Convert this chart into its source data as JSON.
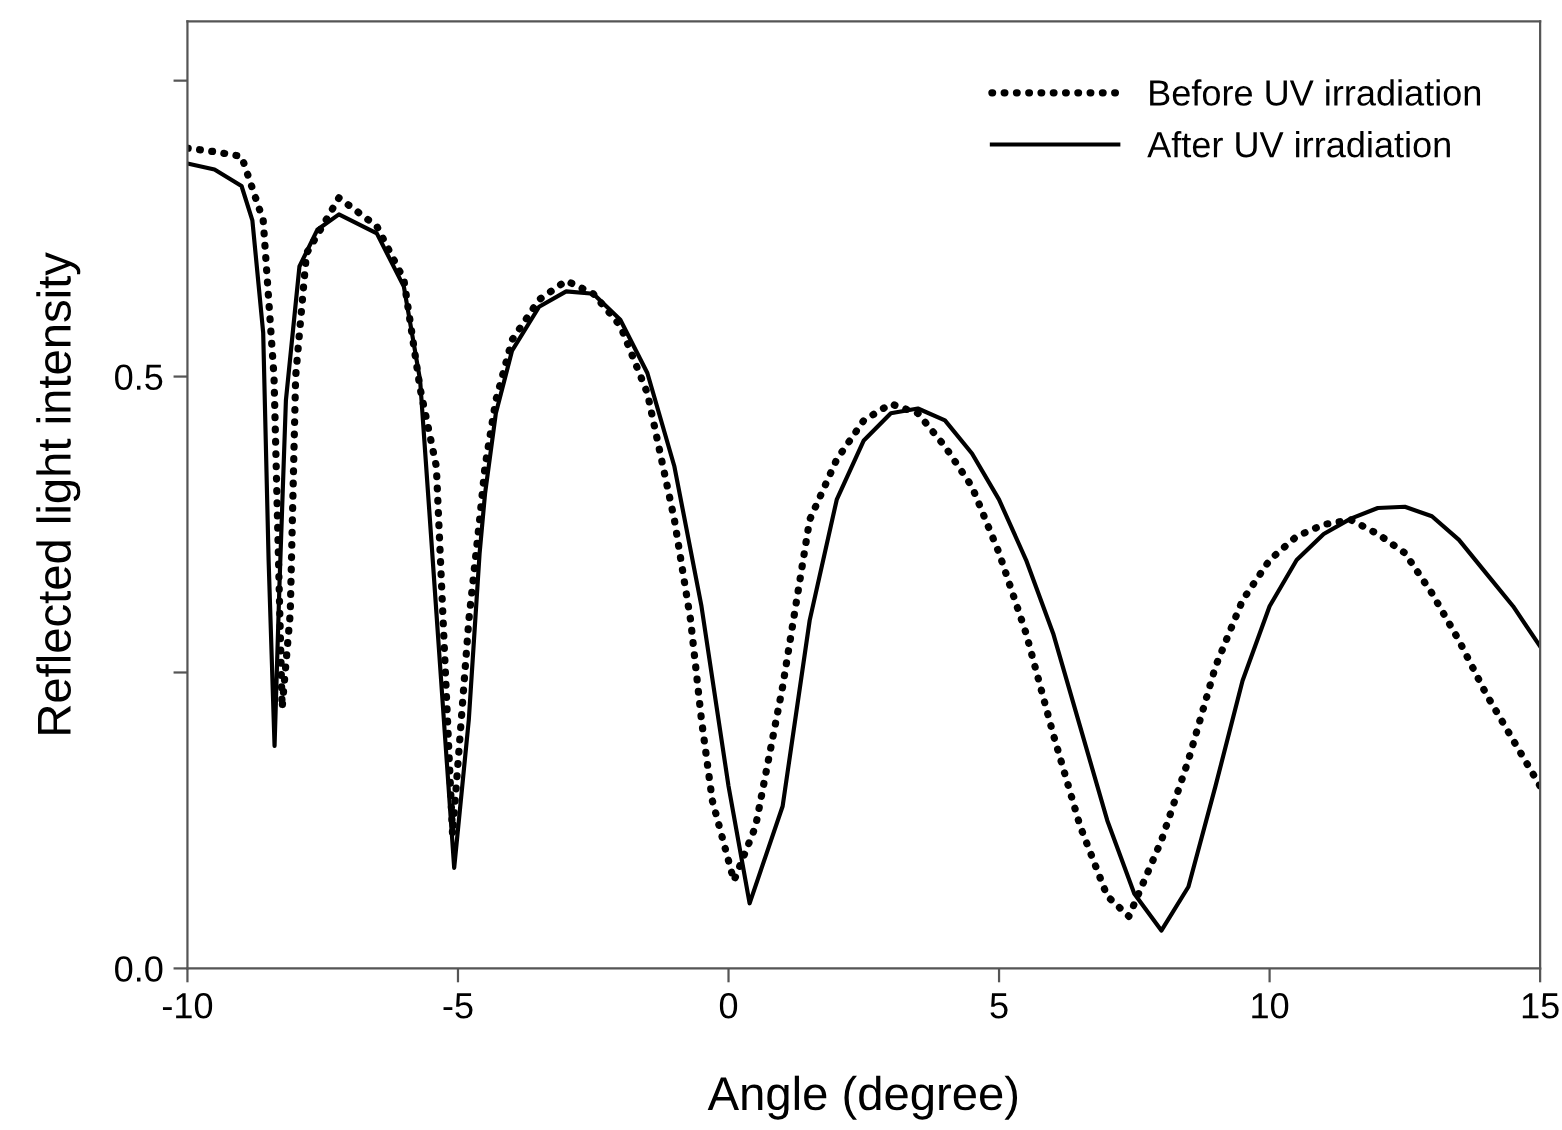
{
  "chart_data": {
    "type": "line",
    "xlabel": "Angle (degree)",
    "ylabel": "Reflected light intensity",
    "xlim": [
      -10,
      15
    ],
    "ylim": [
      0,
      0.8
    ],
    "xticks": [
      -10,
      -5,
      0,
      5,
      10,
      15
    ],
    "yticks": [
      {
        "value": 0,
        "label": "0.0"
      },
      {
        "value": 0.25,
        "label": null
      },
      {
        "value": 0.5,
        "label": "0.5"
      },
      {
        "value": 0.75,
        "label": null
      }
    ],
    "grid": false,
    "legend": "top right",
    "series": [
      {
        "name": "Before UV irradiation",
        "color": "#000000",
        "line_style": "dotted",
        "x": [
          -10,
          -9.5,
          -9,
          -8.6,
          -8.4,
          -8.25,
          -8.1,
          -8.0,
          -7.8,
          -7.2,
          -6.5,
          -6,
          -5.7,
          -5.4,
          -5.1,
          -4.8,
          -4.6,
          -4.5,
          -4.3,
          -4,
          -3.5,
          -3,
          -2.5,
          -2,
          -1.5,
          -1,
          -0.7,
          -0.5,
          -0.3,
          0,
          0.1,
          0.5,
          1,
          1.5,
          2,
          2.5,
          3,
          3.5,
          4,
          4.5,
          5,
          5.5,
          6,
          6.5,
          7,
          7.4,
          8,
          8.5,
          9,
          9.5,
          10,
          10.5,
          11,
          11.5,
          12,
          12.5,
          13,
          13.5,
          14,
          14.5,
          15
        ],
        "values": [
          0.693,
          0.69,
          0.686,
          0.632,
          0.5,
          0.22,
          0.3,
          0.5,
          0.604,
          0.651,
          0.627,
          0.582,
          0.49,
          0.424,
          0.113,
          0.294,
          0.379,
          0.424,
          0.48,
          0.531,
          0.565,
          0.581,
          0.57,
          0.543,
          0.486,
          0.379,
          0.294,
          0.21,
          0.142,
          0.091,
          0.074,
          0.12,
          0.238,
          0.379,
          0.43,
          0.463,
          0.477,
          0.469,
          0.441,
          0.407,
          0.351,
          0.283,
          0.198,
          0.12,
          0.061,
          0.044,
          0.108,
          0.176,
          0.255,
          0.311,
          0.345,
          0.365,
          0.375,
          0.379,
          0.367,
          0.351,
          0.317,
          0.277,
          0.232,
          0.193,
          0.154
        ]
      },
      {
        "name": "After UV irradiation",
        "color": "#000000",
        "line_style": "solid",
        "x": [
          -10,
          -9.5,
          -9,
          -8.8,
          -8.6,
          -8.5,
          -8.39,
          -8.3,
          -8.18,
          -7.93,
          -7.6,
          -7.2,
          -6.5,
          -6,
          -5.7,
          -5.5,
          -5.07,
          -4.8,
          -4.6,
          -4.5,
          -4.3,
          -4,
          -3.5,
          -3,
          -2.5,
          -2,
          -1.5,
          -1,
          -0.5,
          0,
          0.39,
          1,
          1.5,
          2,
          2.5,
          3,
          3.5,
          4,
          4.5,
          5,
          5.5,
          6,
          6.5,
          7,
          7.5,
          8,
          8.5,
          9,
          9.5,
          10,
          10.5,
          11,
          11.5,
          12,
          12.5,
          13,
          13.5,
          14,
          14.5,
          15
        ],
        "values": [
          0.68,
          0.675,
          0.661,
          0.632,
          0.537,
          0.345,
          0.188,
          0.323,
          0.48,
          0.593,
          0.624,
          0.637,
          0.621,
          0.576,
          0.497,
          0.367,
          0.085,
          0.21,
          0.351,
          0.401,
          0.469,
          0.522,
          0.559,
          0.572,
          0.57,
          0.548,
          0.503,
          0.424,
          0.306,
          0.154,
          0.055,
          0.137,
          0.294,
          0.396,
          0.446,
          0.469,
          0.473,
          0.463,
          0.435,
          0.396,
          0.345,
          0.283,
          0.204,
          0.125,
          0.063,
          0.032,
          0.069,
          0.154,
          0.243,
          0.306,
          0.345,
          0.367,
          0.38,
          0.389,
          0.39,
          0.382,
          0.362,
          0.334,
          0.306,
          0.272
        ]
      }
    ]
  }
}
